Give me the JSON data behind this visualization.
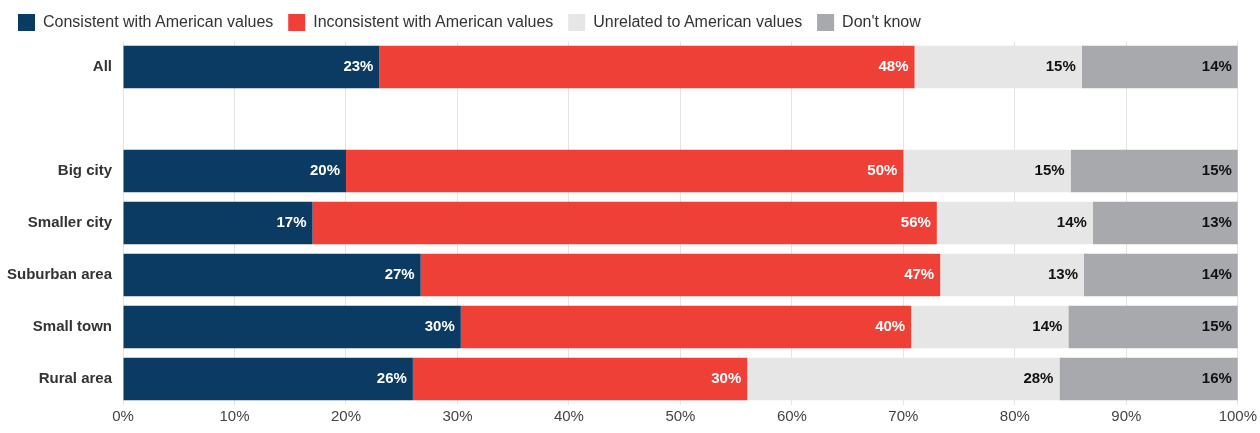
{
  "chart_data": {
    "type": "bar",
    "orientation": "horizontal",
    "stacked": true,
    "categories": [
      "All",
      null,
      "Big city",
      "Smaller city",
      "Suburban area",
      "Small town",
      "Rural area"
    ],
    "series": [
      {
        "name": "Consistent with American values",
        "color": "#0b3a62",
        "values": [
          23,
          null,
          20,
          17,
          26.7,
          30.3,
          26
        ],
        "value_labels": [
          "23%",
          null,
          "20%",
          "17%",
          "27%",
          "30%",
          "26%"
        ]
      },
      {
        "name": "Inconsistent with American values",
        "color": "#ee4037",
        "values": [
          48,
          null,
          50,
          56,
          46.6,
          40.4,
          30
        ],
        "value_labels": [
          "48%",
          null,
          "50%",
          "56%",
          "47%",
          "40%",
          "30%"
        ]
      },
      {
        "name": "Unrelated to American values",
        "color": "#e6e6e6",
        "values": [
          15,
          null,
          15,
          14,
          12.9,
          14.1,
          28
        ],
        "value_labels": [
          "15%",
          null,
          "15%",
          "14%",
          "13%",
          "14%",
          "28%"
        ]
      },
      {
        "name": "Don't know",
        "color": "#a7a9ac",
        "values": [
          14,
          null,
          15,
          13,
          13.8,
          15.2,
          16
        ],
        "value_labels": [
          "14%",
          null,
          "15%",
          "13%",
          "14%",
          "15%",
          "16%"
        ]
      }
    ],
    "xlim": [
      0,
      100
    ],
    "xticks": [
      {
        "value": 0,
        "label": "0%"
      },
      {
        "value": 10,
        "label": "10%"
      },
      {
        "value": 20,
        "label": "20%"
      },
      {
        "value": 30,
        "label": "30%"
      },
      {
        "value": 40,
        "label": "40%"
      },
      {
        "value": 50,
        "label": "50%"
      },
      {
        "value": 60,
        "label": "60%"
      },
      {
        "value": 70,
        "label": "70%"
      },
      {
        "value": 80,
        "label": "80%"
      },
      {
        "value": 90,
        "label": "90%"
      },
      {
        "value": 100,
        "label": "100%"
      }
    ],
    "grid": "x",
    "legend": "top left"
  }
}
